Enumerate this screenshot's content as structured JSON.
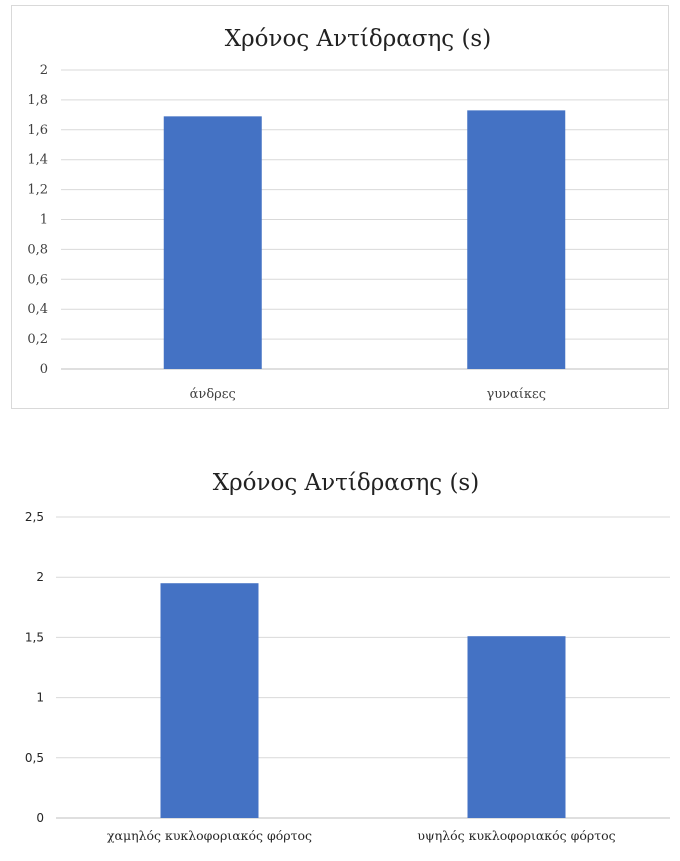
{
  "chart_data": [
    {
      "type": "bar",
      "title": "Χρόνος Αντίδρασης (s)",
      "categories": [
        "άνδρες",
        "γυναίκες"
      ],
      "values": [
        1.69,
        1.73
      ],
      "ylim": [
        0,
        2
      ],
      "yticks": [
        "0",
        "0,2",
        "0,4",
        "0,6",
        "0,8",
        "1",
        "1,2",
        "1,4",
        "1,6",
        "1,8",
        "2"
      ],
      "grid": true,
      "bar_color": "#4472c4"
    },
    {
      "type": "bar",
      "title": "Χρόνος Αντίδρασης (s)",
      "categories": [
        "χαμηλός κυκλοφοριακός φόρτος",
        "υψηλός κυκλοφοριακός φόρτος"
      ],
      "values": [
        1.95,
        1.51
      ],
      "ylim": [
        0,
        2.5
      ],
      "yticks": [
        "0",
        "0,5",
        "1",
        "1,5",
        "2",
        "2,5"
      ],
      "grid": true,
      "bar_color": "#4472c4"
    }
  ]
}
